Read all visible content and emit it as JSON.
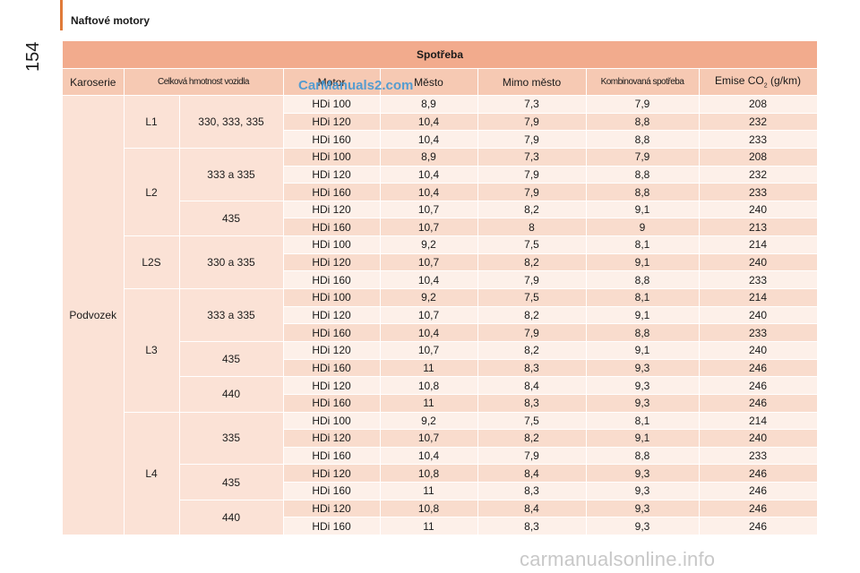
{
  "header": {
    "section_title": "Naftové motory",
    "page_number": "154"
  },
  "watermarks": {
    "top": "CarManuals2.com",
    "bottom": "carmanualsonline.info"
  },
  "table": {
    "title": "Spotřeba",
    "columns": {
      "body": "Karoserie",
      "weight": "Celková hmotnost vozidla",
      "engine": "Motor",
      "city": "Město",
      "extra_urban": "Mimo město",
      "combined": "Kombinovaná spotřeba",
      "emissions_prefix": "Emise CO",
      "emissions_sub": "2",
      "emissions_suffix": " (g/km)"
    },
    "body_type": "Podvozek",
    "lengths": [
      "L1",
      "L2",
      "L2S",
      "L3",
      "L4"
    ],
    "weights": [
      "330, 333, 335",
      "333 a 335",
      "435",
      "330 a 335",
      "333 a 335",
      "435",
      "440",
      "335",
      "435",
      "440"
    ],
    "rows": [
      [
        "HDi 100",
        "8,9",
        "7,3",
        "7,9",
        "208"
      ],
      [
        "HDi 120",
        "10,4",
        "7,9",
        "8,8",
        "232"
      ],
      [
        "HDi 160",
        "10,4",
        "7,9",
        "8,8",
        "233"
      ],
      [
        "HDi 100",
        "8,9",
        "7,3",
        "7,9",
        "208"
      ],
      [
        "HDi 120",
        "10,4",
        "7,9",
        "8,8",
        "232"
      ],
      [
        "HDi 160",
        "10,4",
        "7,9",
        "8,8",
        "233"
      ],
      [
        "HDi 120",
        "10,7",
        "8,2",
        "9,1",
        "240"
      ],
      [
        "HDi 160",
        "10,7",
        "8",
        "9",
        "213"
      ],
      [
        "HDi 100",
        "9,2",
        "7,5",
        "8,1",
        "214"
      ],
      [
        "HDi 120",
        "10,7",
        "8,2",
        "9,1",
        "240"
      ],
      [
        "HDi 160",
        "10,4",
        "7,9",
        "8,8",
        "233"
      ],
      [
        "HDi 100",
        "9,2",
        "7,5",
        "8,1",
        "214"
      ],
      [
        "HDi 120",
        "10,7",
        "8,2",
        "9,1",
        "240"
      ],
      [
        "HDi 160",
        "10,4",
        "7,9",
        "8,8",
        "233"
      ],
      [
        "HDi 120",
        "10,7",
        "8,2",
        "9,1",
        "240"
      ],
      [
        "HDi 160",
        "11",
        "8,3",
        "9,3",
        "246"
      ],
      [
        "HDi 120",
        "10,8",
        "8,4",
        "9,3",
        "246"
      ],
      [
        "HDi 160",
        "11",
        "8,3",
        "9,3",
        "246"
      ],
      [
        "HDi 100",
        "9,2",
        "7,5",
        "8,1",
        "214"
      ],
      [
        "HDi 120",
        "10,7",
        "8,2",
        "9,1",
        "240"
      ],
      [
        "HDi 160",
        "10,4",
        "7,9",
        "8,8",
        "233"
      ],
      [
        "HDi 120",
        "10,8",
        "8,4",
        "9,3",
        "246"
      ],
      [
        "HDi 160",
        "11",
        "8,3",
        "9,3",
        "246"
      ],
      [
        "HDi 120",
        "10,8",
        "8,4",
        "9,3",
        "246"
      ],
      [
        "HDi 160",
        "11",
        "8,3",
        "9,3",
        "246"
      ]
    ]
  },
  "colors": {
    "accent": "#e07b39",
    "title_bg": "#f2ab8d",
    "header_bg": "#f6c9b3",
    "group_bg": "#fbe2d6",
    "row_light": "#fdf0e9",
    "row_dark": "#f9dccd",
    "watermark_blue": "#3a95d6"
  }
}
